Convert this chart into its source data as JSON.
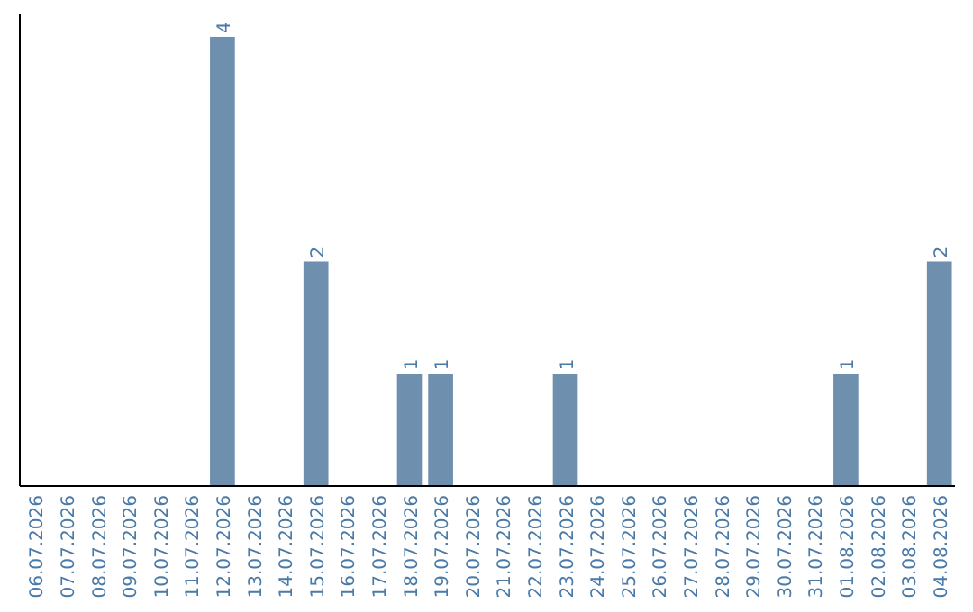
{
  "chart_data": {
    "type": "bar",
    "categories": [
      "06.07.2026",
      "07.07.2026",
      "08.07.2026",
      "09.07.2026",
      "10.07.2026",
      "11.07.2026",
      "12.07.2026",
      "13.07.2026",
      "14.07.2026",
      "15.07.2026",
      "16.07.2026",
      "17.07.2026",
      "18.07.2026",
      "19.07.2026",
      "20.07.2026",
      "21.07.2026",
      "22.07.2026",
      "23.07.2026",
      "24.07.2026",
      "25.07.2026",
      "26.07.2026",
      "27.07.2026",
      "28.07.2026",
      "29.07.2026",
      "30.07.2026",
      "31.07.2026",
      "01.08.2026",
      "02.08.2026",
      "03.08.2026",
      "04.08.2026"
    ],
    "values": [
      0,
      0,
      0,
      0,
      0,
      0,
      4,
      0,
      0,
      2,
      0,
      0,
      1,
      1,
      0,
      0,
      0,
      1,
      0,
      0,
      0,
      0,
      0,
      0,
      0,
      0,
      1,
      0,
      0,
      2
    ],
    "value_labels": [
      null,
      null,
      null,
      null,
      null,
      null,
      "4",
      null,
      null,
      "2",
      null,
      null,
      "1",
      "1",
      null,
      null,
      null,
      "1",
      null,
      null,
      null,
      null,
      null,
      null,
      null,
      null,
      "1",
      null,
      null,
      "2"
    ],
    "color": "#6f8fae",
    "ylim": [
      0,
      4.2
    ],
    "tick_labels": "x"
  }
}
